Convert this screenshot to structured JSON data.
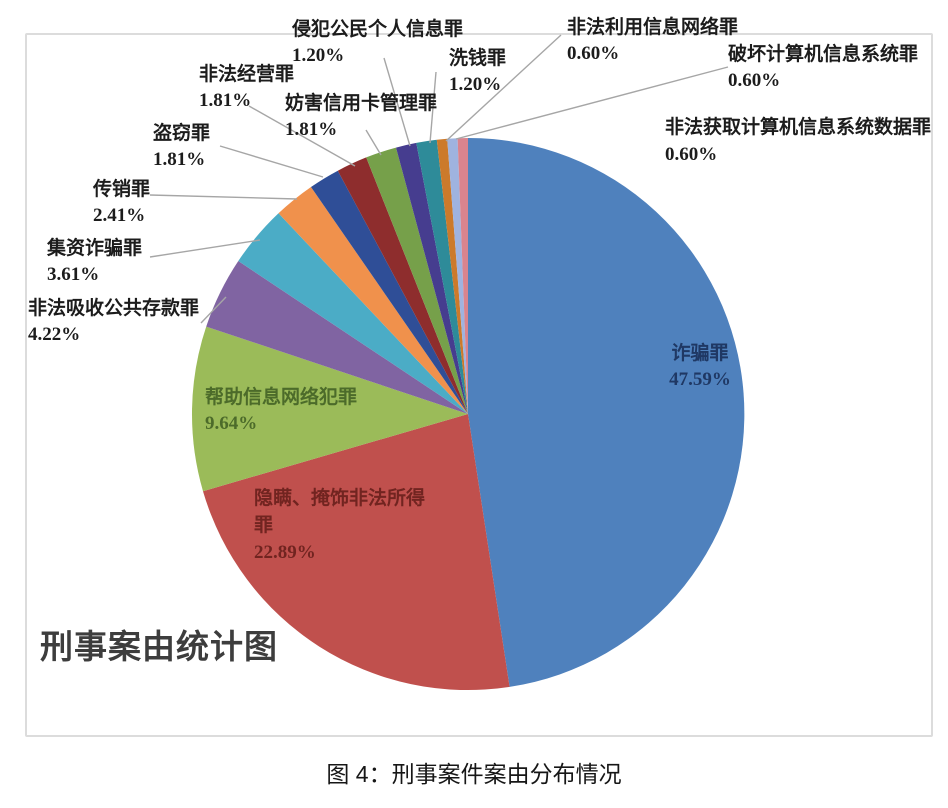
{
  "chart_data": {
    "type": "pie",
    "title": "刑事案由统计图",
    "caption": "图 4：刑事案件案由分布情况",
    "legend_position": "none",
    "label_style": "category name + percentage; large slices labeled inside, small slices via gray leader lines outside",
    "leader_line_color": "#A6A6A6",
    "frame_border_color": "#DCDCDC",
    "slices": [
      {
        "label": "诈骗罪",
        "value": 47.59,
        "pct": "47.59%",
        "color": "#4F81BD",
        "text_color": "#1F3864",
        "placement": "inside"
      },
      {
        "label": "隐瞒、掩饰非法所得罪",
        "value": 22.89,
        "pct": "22.89%",
        "color": "#C0504D",
        "text_color": "#712420",
        "placement": "inside"
      },
      {
        "label": "帮助信息网络犯罪",
        "value": 9.64,
        "pct": "9.64%",
        "color": "#9BBB59",
        "text_color": "#4C6B2A",
        "placement": "inside"
      },
      {
        "label": "非法吸收公共存款罪",
        "value": 4.22,
        "pct": "4.22%",
        "color": "#8064A2",
        "placement": "outside"
      },
      {
        "label": "集资诈骗罪",
        "value": 3.61,
        "pct": "3.61%",
        "color": "#4BACC6",
        "placement": "outside"
      },
      {
        "label": "传销罪",
        "value": 2.41,
        "pct": "2.41%",
        "color": "#F0914C",
        "placement": "outside"
      },
      {
        "label": "盗窃罪",
        "value": 1.81,
        "pct": "1.81%",
        "color": "#2F4E97",
        "placement": "outside"
      },
      {
        "label": "非法经营罪",
        "value": 1.81,
        "pct": "1.81%",
        "color": "#8E2D2D",
        "placement": "outside"
      },
      {
        "label": "妨害信用卡管理罪",
        "value": 1.81,
        "pct": "1.81%",
        "color": "#76A04A",
        "placement": "outside"
      },
      {
        "label": "侵犯公民个人信息罪",
        "value": 1.2,
        "pct": "1.20%",
        "color": "#463D8F",
        "placement": "outside"
      },
      {
        "label": "洗钱罪",
        "value": 1.2,
        "pct": "1.20%",
        "color": "#2E8B99",
        "placement": "outside"
      },
      {
        "label": "非法利用信息网络罪",
        "value": 0.6,
        "pct": "0.60%",
        "color": "#CC7A2B",
        "placement": "outside"
      },
      {
        "label": "破坏计算机信息系统罪",
        "value": 0.6,
        "pct": "0.60%",
        "color": "#9FB3DF",
        "placement": "outside"
      },
      {
        "label": "非法获取计算机信息系统数据罪",
        "value": 0.6,
        "pct": "0.60%",
        "color": "#D9848E",
        "placement": "outside"
      }
    ]
  }
}
